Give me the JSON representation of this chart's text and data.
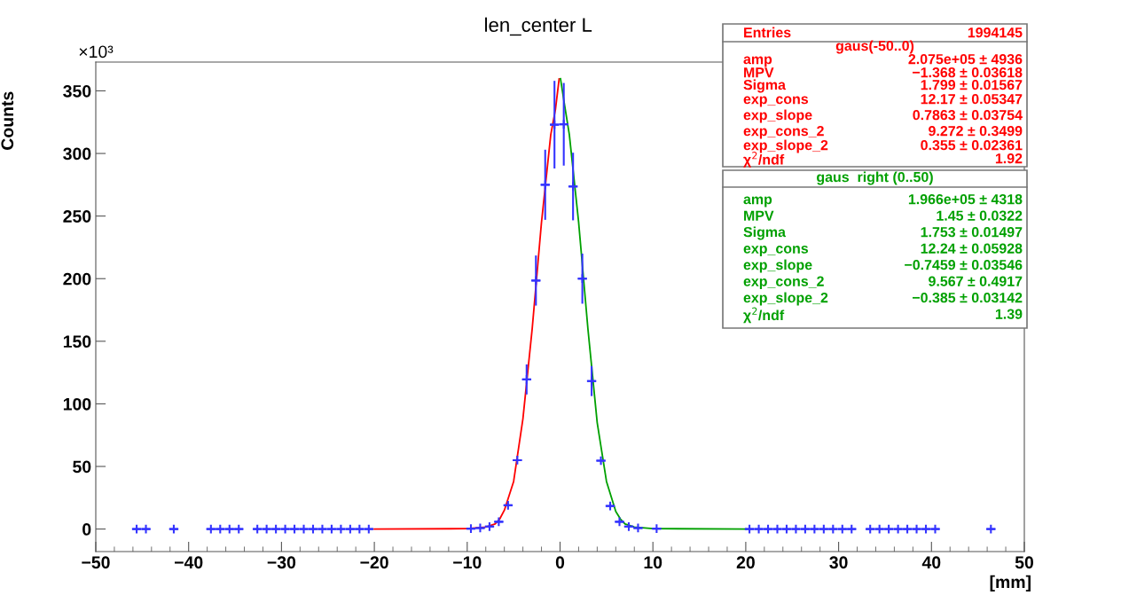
{
  "chart_data": {
    "type": "scatter",
    "title": "len_center L",
    "xlabel": "[mm]",
    "ylabel": "Counts",
    "annotations": [
      "×10³",
      "Entries",
      "1994145",
      "gaus(-50..0)",
      "amp",
      "2.075e+05 ± 4936",
      "MPV",
      "−1.368 ± 0.03618",
      "Sigma",
      "1.799 ± 0.01567",
      "exp_cons",
      "12.17 ± 0.05347",
      "exp_slope",
      "0.7863 ± 0.03754",
      "exp_cons_2",
      "9.272 ± 0.3499",
      "exp_slope_2",
      "0.355 ± 0.02361",
      "χ$^{2}$/ndf",
      "1.92",
      "gaus  right (0..50)",
      "amp",
      "1.966e+05 ± 4318",
      "MPV",
      "1.45 ± 0.0322",
      "Sigma",
      "1.753 ± 0.01497",
      "exp_cons",
      "12.24 ± 0.05928",
      "exp_slope",
      "−0.7459 ± 0.03546",
      "exp_cons_2",
      "9.567 ± 0.4917",
      "exp_slope_2",
      "−0.385 ± 0.03142",
      "χ$^{2}$/ndf",
      "1.39"
    ],
    "xlim": [
      -50,
      50
    ],
    "ylim": [
      -18,
      373
    ],
    "xticks": [
      {
        "value": -50,
        "label": "−50"
      },
      {
        "value": -40,
        "label": "−40"
      },
      {
        "value": -30,
        "label": "−30"
      },
      {
        "value": -20,
        "label": "−20"
      },
      {
        "value": -10,
        "label": "−10"
      },
      0,
      10,
      20,
      30,
      40,
      50
    ],
    "yticks": [
      0,
      50,
      100,
      150,
      200,
      250,
      300,
      350
    ],
    "grid": false,
    "series": [
      {
        "color": "#3333ff",
        "marker": "cross",
        "x": [
          -45.6,
          -44.6,
          -41.6,
          -37.6,
          -36.6,
          -35.6,
          -34.6,
          -32.6,
          -31.6,
          -30.6,
          -29.6,
          -28.6,
          -27.6,
          -26.6,
          -25.6,
          -24.6,
          -23.6,
          -22.6,
          -21.6,
          -20.6,
          -9.6,
          -8.6,
          -7.6,
          -6.6,
          -5.6,
          -4.6,
          -3.6,
          -2.6,
          -1.6,
          -0.6,
          0.4,
          1.4,
          2.4,
          3.4,
          4.4,
          5.4,
          6.4,
          7.4,
          8.4,
          10.4,
          20.4,
          21.4,
          22.4,
          23.4,
          24.4,
          25.4,
          26.4,
          27.4,
          28.4,
          29.4,
          30.4,
          31.4,
          33.4,
          34.4,
          35.4,
          36.4,
          37.4,
          38.4,
          39.4,
          40.4,
          46.4
        ],
        "values": [
          0,
          0,
          0,
          0,
          0,
          0,
          0,
          0,
          0,
          0,
          0,
          0,
          0,
          0,
          0,
          0,
          0,
          0,
          0,
          0,
          0.3,
          0.8,
          2,
          5.8,
          19,
          55,
          119.5,
          198.5,
          275,
          323,
          323.3,
          273.6,
          200,
          118.2,
          54.6,
          18.4,
          5.8,
          2,
          0.8,
          0.3,
          0,
          0,
          0,
          0,
          0,
          0,
          0,
          0,
          0,
          0,
          0,
          0,
          0,
          0,
          0,
          0,
          0,
          0,
          0,
          0,
          0
        ],
        "errors": [
          null,
          null,
          null,
          null,
          null,
          null,
          null,
          null,
          null,
          null,
          null,
          null,
          null,
          null,
          null,
          null,
          null,
          null,
          null,
          null,
          null,
          null,
          null,
          null,
          null,
          null,
          12,
          20,
          28,
          35,
          33,
          27,
          20,
          12,
          null,
          null,
          null,
          null,
          null,
          null,
          null,
          null,
          null,
          null,
          null,
          null,
          null,
          null,
          null,
          null,
          null,
          null,
          null,
          null,
          null,
          null,
          null,
          null,
          null,
          null,
          null
        ],
        "xerrors": [
          0.5,
          0.5,
          0.5,
          0.5,
          0.5,
          0.5,
          0.5,
          0.5,
          0.5,
          0.5,
          0.5,
          0.5,
          0.5,
          0.5,
          0.5,
          0.5,
          0.5,
          0.5,
          0.5,
          0.5,
          0.5,
          0.5,
          0.5,
          0.5,
          0.5,
          0.5,
          0.5,
          0.5,
          0.5,
          0.5,
          0.5,
          0.5,
          0.5,
          0.5,
          0.5,
          0.5,
          0.5,
          0.5,
          0.5,
          0.5,
          0.5,
          0.5,
          0.5,
          0.5,
          0.5,
          0.5,
          0.5,
          0.5,
          0.5,
          0.5,
          0.5,
          0.5,
          0.5,
          0.5,
          0.5,
          0.5,
          0.5,
          0.5,
          0.5,
          0.5,
          0.5
        ]
      },
      {
        "type": "line",
        "color": "#ff0000",
        "x": [
          -20,
          -10,
          -8,
          -7,
          -6.5,
          -6,
          -5,
          -4,
          -3,
          -2,
          -1,
          -0.5,
          -0.1
        ],
        "values": [
          0,
          0.3,
          1.5,
          4,
          8,
          15,
          38,
          88,
          160,
          245,
          315,
          335,
          359.6
        ]
      },
      {
        "type": "line",
        "color": "#00a000",
        "x": [
          0.05,
          0.5,
          1,
          2,
          3,
          4,
          5,
          6,
          6.5,
          7,
          8,
          10,
          20
        ],
        "values": [
          359.7,
          338,
          315,
          245,
          160,
          85,
          38,
          14,
          8,
          4,
          1.5,
          0.3,
          0
        ]
      }
    ]
  }
}
